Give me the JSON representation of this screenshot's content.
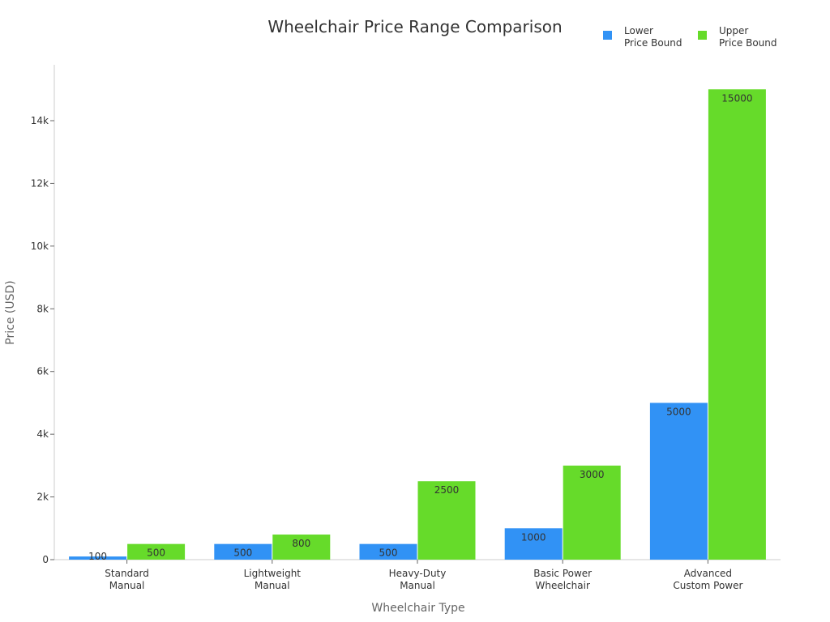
{
  "chart_data": {
    "type": "bar",
    "title": "Wheelchair Price Range Comparison",
    "xlabel": "Wheelchair Type",
    "ylabel": "Price (USD)",
    "categories": [
      [
        "Standard",
        "Manual"
      ],
      [
        "Lightweight",
        "Manual"
      ],
      [
        "Heavy-Duty",
        "Manual"
      ],
      [
        "Basic Power",
        "Wheelchair"
      ],
      [
        "Advanced",
        "Custom Power"
      ]
    ],
    "series": [
      {
        "name": [
          "Lower",
          "Price Bound"
        ],
        "color": "#3192f5",
        "values": [
          100,
          500,
          500,
          1000,
          5000
        ]
      },
      {
        "name": [
          "Upper",
          "Price Bound"
        ],
        "color": "#66db2a",
        "values": [
          500,
          800,
          2500,
          3000,
          15000
        ]
      }
    ],
    "ylim": [
      0,
      15700
    ],
    "yticks": [
      0,
      2000,
      4000,
      6000,
      8000,
      10000,
      12000,
      14000
    ],
    "ytick_labels": [
      "0",
      "2k",
      "4k",
      "6k",
      "8k",
      "10k",
      "12k",
      "14k"
    ],
    "legend_position": "top-right",
    "grid": false
  }
}
